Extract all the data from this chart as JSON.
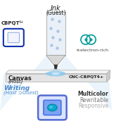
{
  "bg_color": "#ffffff",
  "title_ink": "Ink",
  "subtitle_ink": "(Guest)",
  "label_cbpqt_top": "CBPQT",
  "label_cbpqt_sup": "4+",
  "label_nelectron": "π-electron-rich",
  "label_canvas": "Canvas",
  "label_host": "(Host)",
  "label_cnc": "CNC-CBPQT",
  "label_cnc_sup": "4+",
  "label_writing": "Writing",
  "label_writing_sub": "(Host ⊃Guest)",
  "label_multicolor": "Multicolor",
  "label_rewritable": "Rewritable",
  "label_responsive": "Responsive",
  "pen_body_color": "#eaf0f8",
  "pen_body_edge": "#aaaaaa",
  "pen_tip_dark": "#444444",
  "pen_dots_color": "#aac8e8",
  "canvas_top_color": "#f4f4f4",
  "canvas_side_color": "#cccccc",
  "canvas_front_color": "#e4e4e4",
  "ink_label_color": "#222222",
  "cbpqt_label_color": "#222222",
  "nelectron_label_color": "#444444",
  "canvas_label_color": "#222222",
  "writing_label_color": "#4488cc",
  "multicolor_label_color": "#333333",
  "rewritable_label_color": "#777777",
  "responsive_label_color": "#aaaaaa",
  "cbpqt_mol_color": "#1133aa",
  "teal_mol_color": "#009999",
  "beam_color_center": "#b0d8f4",
  "beam_color_side": "#ddeef8"
}
